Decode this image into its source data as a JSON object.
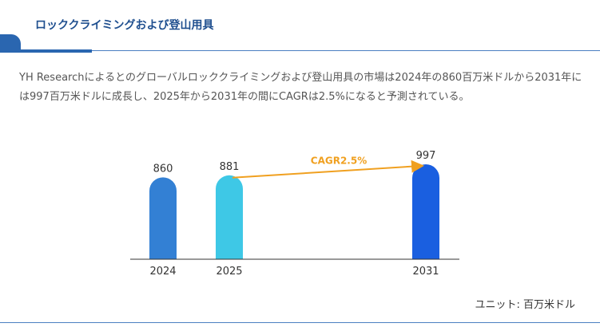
{
  "header": {
    "title": "ロッククライミングおよび登山用具"
  },
  "description": "YH Researchによるとのグローバルロッククライミングおよび登山用具の市場は2024年の860百万米ドルから2031年には997百万米ドルに成長し、2025年から2031年の間にCAGRは2.5%になると予測されている。",
  "unit_label": "ユニット: 百万米ドル",
  "colors": {
    "accent": "#2a66b0",
    "cagr_arrow": "#f0a020"
  },
  "chart_data": {
    "type": "bar",
    "categories": [
      "2024",
      "2025",
      "2031"
    ],
    "values": [
      860,
      881,
      997
    ],
    "bar_colors": [
      "#3380d4",
      "#3ec8e6",
      "#1a5fe0"
    ],
    "annotation": {
      "text": "CAGR2.5%",
      "from": "2025",
      "to": "2031"
    },
    "ylim": [
      0,
      1000
    ]
  }
}
